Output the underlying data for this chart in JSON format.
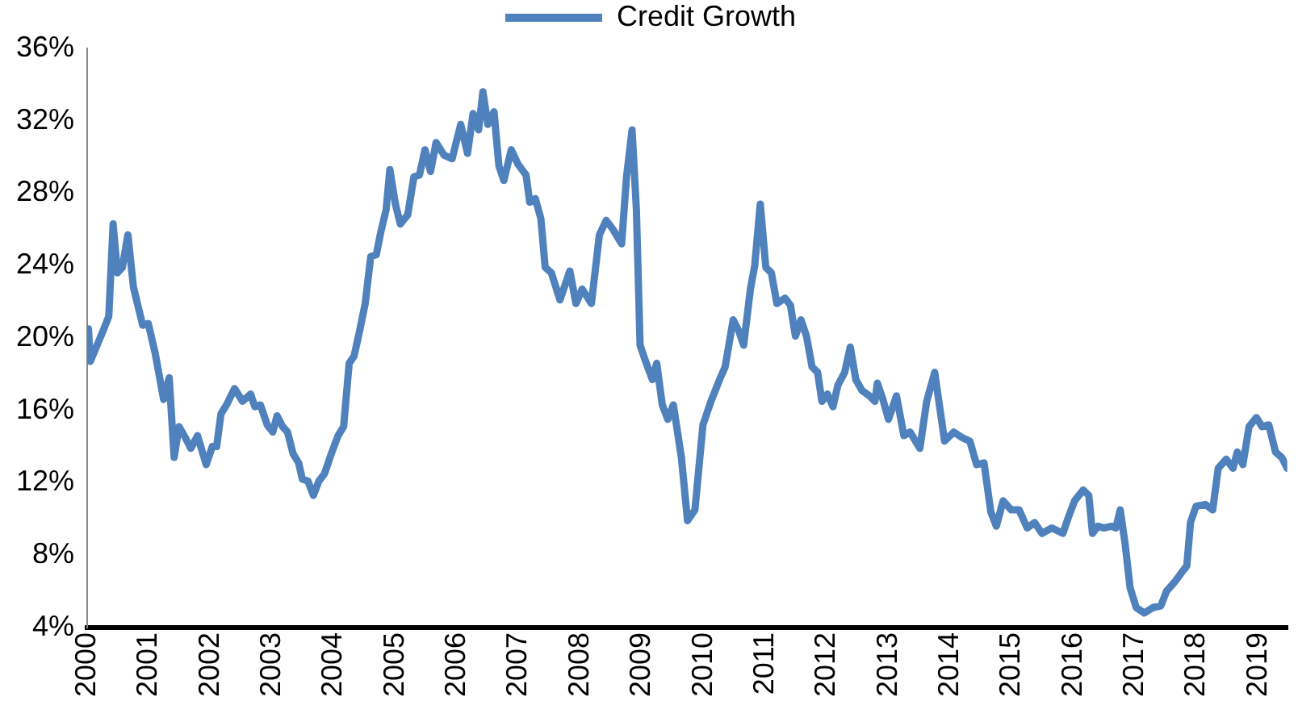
{
  "chart_data": {
    "type": "line",
    "legend": "top",
    "grid": false,
    "line_style": "solid",
    "marker": "none",
    "xlim": [
      2000,
      2019.47
    ],
    "xticks": [
      2000,
      2001,
      2002,
      2003,
      2004,
      2005,
      2006,
      2007,
      2008,
      2009,
      2010,
      2011,
      2012,
      2013,
      2014,
      2015,
      2016,
      2017,
      2018,
      2019
    ],
    "ylim": [
      4,
      36
    ],
    "yticks": [
      {
        "value": 4,
        "label": "4%"
      },
      {
        "value": 8,
        "label": "8%"
      },
      {
        "value": 12,
        "label": "12%"
      },
      {
        "value": 16,
        "label": "16%"
      },
      {
        "value": 20,
        "label": "20%"
      },
      {
        "value": 24,
        "label": "24%"
      },
      {
        "value": 28,
        "label": "28%"
      },
      {
        "value": 32,
        "label": "32%"
      },
      {
        "value": 36,
        "label": "36%"
      }
    ],
    "series": [
      {
        "name": "Credit Growth",
        "color": "#4f81bd",
        "x": [
          2000.0,
          2000.02,
          2000.05,
          2000.27,
          2000.35,
          2000.42,
          2000.49,
          2000.57,
          2000.66,
          2000.75,
          2000.9,
          2000.99,
          2001.1,
          2001.24,
          2001.33,
          2001.41,
          2001.49,
          2001.59,
          2001.68,
          2001.79,
          2001.93,
          2002.03,
          2002.1,
          2002.17,
          2002.26,
          2002.39,
          2002.52,
          2002.65,
          2002.72,
          2002.81,
          2002.92,
          2003.01,
          2003.08,
          2003.17,
          2003.25,
          2003.34,
          2003.43,
          2003.49,
          2003.58,
          2003.67,
          2003.76,
          2003.85,
          2003.96,
          2004.07,
          2004.16,
          2004.25,
          2004.33,
          2004.42,
          2004.51,
          2004.6,
          2004.69,
          2004.76,
          2004.85,
          2004.91,
          2005.0,
          2005.08,
          2005.2,
          2005.3,
          2005.39,
          2005.48,
          2005.57,
          2005.66,
          2005.79,
          2005.92,
          2006.06,
          2006.17,
          2006.26,
          2006.35,
          2006.42,
          2006.5,
          2006.6,
          2006.68,
          2006.76,
          2006.88,
          2006.99,
          2007.12,
          2007.18,
          2007.27,
          2007.36,
          2007.43,
          2007.53,
          2007.67,
          2007.83,
          2007.93,
          2008.03,
          2008.18,
          2008.31,
          2008.42,
          2008.53,
          2008.67,
          2008.75,
          2008.84,
          2008.91,
          2008.97,
          2009.06,
          2009.17,
          2009.24,
          2009.33,
          2009.42,
          2009.51,
          2009.64,
          2009.74,
          2009.86,
          2009.99,
          2010.12,
          2010.26,
          2010.35,
          2010.48,
          2010.57,
          2010.65,
          2010.76,
          2010.83,
          2010.92,
          2011.01,
          2011.1,
          2011.19,
          2011.32,
          2011.41,
          2011.49,
          2011.58,
          2011.67,
          2011.76,
          2011.85,
          2011.92,
          2012.01,
          2012.1,
          2012.18,
          2012.29,
          2012.38,
          2012.47,
          2012.57,
          2012.69,
          2012.78,
          2012.82,
          2012.91,
          2013.0,
          2013.13,
          2013.25,
          2013.35,
          2013.51,
          2013.62,
          2013.75,
          2013.91,
          2014.06,
          2014.19,
          2014.32,
          2014.43,
          2014.55,
          2014.66,
          2014.75,
          2014.86,
          2014.99,
          2015.12,
          2015.25,
          2015.37,
          2015.49,
          2015.65,
          2015.83,
          2015.92,
          2016.02,
          2016.16,
          2016.25,
          2016.31,
          2016.4,
          2016.49,
          2016.62,
          2016.69,
          2016.76,
          2016.84,
          2016.92,
          2017.02,
          2017.15,
          2017.29,
          2017.42,
          2017.51,
          2017.64,
          2017.77,
          2017.84,
          2017.9,
          2017.99,
          2018.14,
          2018.26,
          2018.35,
          2018.48,
          2018.59,
          2018.66,
          2018.75,
          2018.85,
          2018.97,
          2019.06,
          2019.17,
          2019.28,
          2019.38,
          2019.47
        ],
        "values": [
          19.5,
          20.5,
          18.7,
          20.5,
          21.2,
          26.3,
          23.6,
          23.9,
          25.7,
          22.8,
          20.7,
          20.8,
          19.2,
          16.6,
          17.8,
          13.4,
          15.1,
          14.5,
          13.9,
          14.6,
          13.0,
          14.0,
          14.0,
          15.8,
          16.3,
          17.2,
          16.5,
          16.9,
          16.2,
          16.3,
          15.2,
          14.8,
          15.7,
          15.1,
          14.8,
          13.6,
          13.1,
          12.2,
          12.1,
          11.3,
          12.1,
          12.5,
          13.6,
          14.6,
          15.1,
          18.6,
          19.0,
          20.4,
          21.9,
          24.5,
          24.6,
          25.8,
          27.1,
          29.3,
          27.4,
          26.3,
          26.8,
          28.9,
          29.0,
          30.4,
          29.2,
          30.8,
          30.1,
          29.9,
          31.8,
          30.2,
          32.4,
          31.5,
          33.6,
          31.8,
          32.5,
          29.5,
          28.7,
          30.4,
          29.6,
          29.0,
          27.5,
          27.7,
          26.6,
          23.9,
          23.6,
          22.1,
          23.7,
          21.9,
          22.7,
          21.9,
          25.7,
          26.5,
          26.0,
          25.2,
          28.9,
          31.5,
          27.1,
          19.6,
          18.7,
          17.7,
          18.6,
          16.3,
          15.5,
          16.3,
          13.4,
          9.9,
          10.5,
          15.2,
          16.5,
          17.7,
          18.4,
          21.0,
          20.4,
          19.6,
          22.7,
          24.0,
          27.4,
          23.9,
          23.6,
          21.9,
          22.2,
          21.8,
          20.1,
          21.0,
          20.1,
          18.4,
          18.1,
          16.5,
          16.9,
          16.2,
          17.4,
          18.1,
          19.5,
          17.7,
          17.1,
          16.8,
          16.5,
          17.5,
          16.6,
          15.5,
          16.8,
          14.6,
          14.8,
          13.9,
          16.5,
          18.1,
          14.3,
          14.8,
          14.5,
          14.3,
          13.0,
          13.1,
          10.4,
          9.6,
          11.0,
          10.5,
          10.5,
          9.5,
          9.8,
          9.2,
          9.5,
          9.2,
          10.1,
          11.0,
          11.6,
          11.3,
          9.2,
          9.6,
          9.5,
          9.6,
          9.5,
          10.5,
          8.6,
          6.2,
          5.1,
          4.8,
          5.1,
          5.2,
          6.0,
          6.5,
          7.1,
          7.4,
          9.8,
          10.7,
          10.8,
          10.5,
          12.8,
          13.3,
          12.8,
          13.7,
          13.0,
          15.1,
          15.6,
          15.1,
          15.2,
          13.7,
          13.4,
          12.8
        ]
      }
    ]
  }
}
